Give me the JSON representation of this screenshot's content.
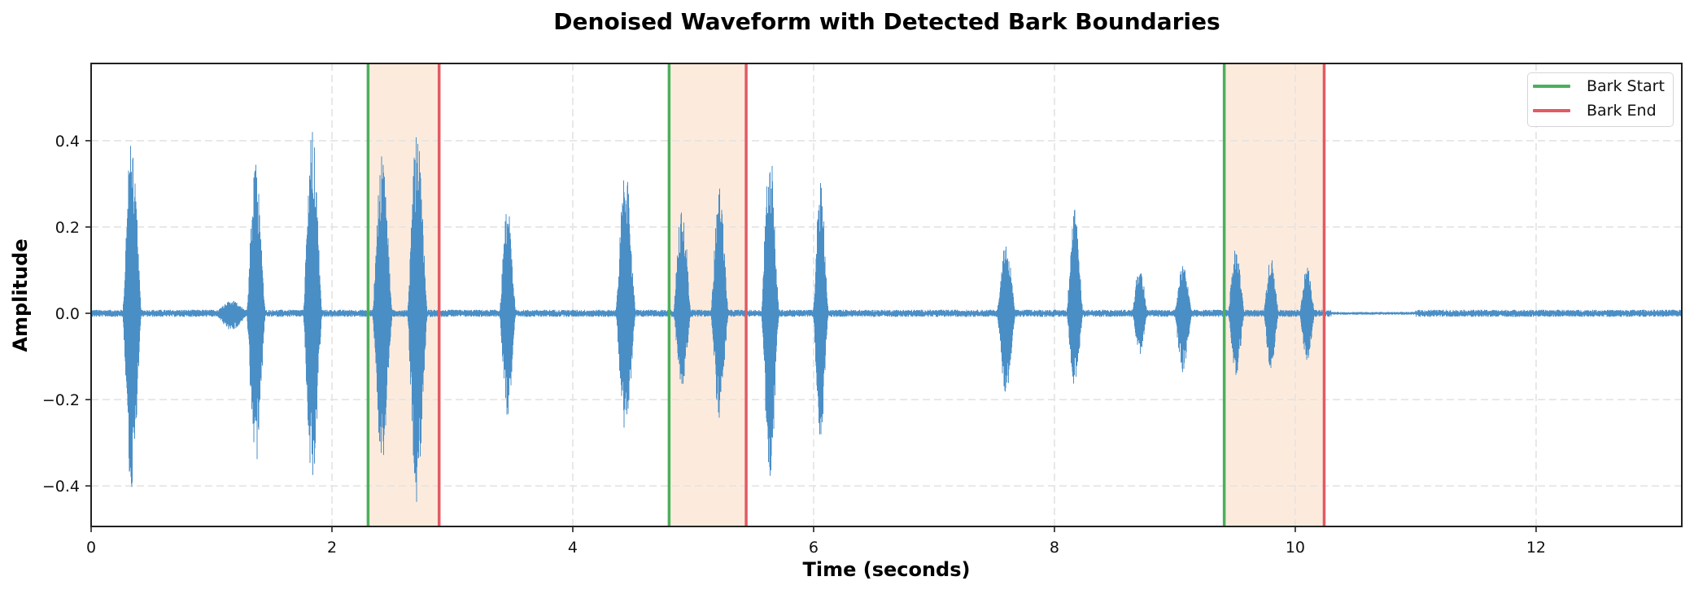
{
  "chart_data": {
    "type": "line",
    "title": "Denoised Waveform with Detected Bark Boundaries",
    "xlabel": "Time (seconds)",
    "ylabel": "Amplitude",
    "xlim": [
      0,
      13.21
    ],
    "ylim": [
      -0.494,
      0.579
    ],
    "xticks": [
      0,
      2,
      4,
      6,
      8,
      10,
      12
    ],
    "xtick_labels": [
      "0",
      "2",
      "4",
      "6",
      "8",
      "10",
      "12"
    ],
    "yticks": [
      -0.4,
      -0.2,
      0.0,
      0.2,
      0.4
    ],
    "ytick_labels": [
      "−0.4",
      "−0.2",
      "0.0",
      "0.2",
      "0.4"
    ],
    "grid": true,
    "legend_position": "upper right",
    "legend": [
      {
        "label": "Bark Start",
        "color": "#4caf5c"
      },
      {
        "label": "Bark End",
        "color": "#e15a64"
      }
    ],
    "series": [
      {
        "name": "Denoised waveform",
        "color": "#4a8ec6",
        "description": "audio waveform with bursts (barks); each burst listed by center time and peak amplitudes",
        "bursts": [
          {
            "t": 0.34,
            "pos": 0.42,
            "neg": -0.42,
            "width": 0.16
          },
          {
            "t": 1.17,
            "pos": 0.03,
            "neg": -0.04,
            "width": 0.3
          },
          {
            "t": 1.37,
            "pos": 0.35,
            "neg": -0.36,
            "width": 0.16
          },
          {
            "t": 1.84,
            "pos": 0.43,
            "neg": -0.41,
            "width": 0.16
          },
          {
            "t": 2.42,
            "pos": 0.37,
            "neg": -0.35,
            "width": 0.17
          },
          {
            "t": 2.71,
            "pos": 0.44,
            "neg": -0.45,
            "width": 0.17
          },
          {
            "t": 3.46,
            "pos": 0.25,
            "neg": -0.24,
            "width": 0.14
          },
          {
            "t": 4.44,
            "pos": 0.34,
            "neg": -0.28,
            "width": 0.17
          },
          {
            "t": 4.91,
            "pos": 0.26,
            "neg": -0.18,
            "width": 0.15
          },
          {
            "t": 5.22,
            "pos": 0.29,
            "neg": -0.25,
            "width": 0.15
          },
          {
            "t": 5.64,
            "pos": 0.41,
            "neg": -0.39,
            "width": 0.15
          },
          {
            "t": 6.06,
            "pos": 0.32,
            "neg": -0.29,
            "width": 0.13
          },
          {
            "t": 7.6,
            "pos": 0.17,
            "neg": -0.19,
            "width": 0.16
          },
          {
            "t": 8.17,
            "pos": 0.25,
            "neg": -0.17,
            "width": 0.14
          },
          {
            "t": 8.71,
            "pos": 0.12,
            "neg": -0.1,
            "width": 0.13
          },
          {
            "t": 9.07,
            "pos": 0.12,
            "neg": -0.14,
            "width": 0.15
          },
          {
            "t": 9.51,
            "pos": 0.16,
            "neg": -0.15,
            "width": 0.14
          },
          {
            "t": 9.8,
            "pos": 0.13,
            "neg": -0.13,
            "width": 0.13
          },
          {
            "t": 10.1,
            "pos": 0.11,
            "neg": -0.12,
            "width": 0.13
          }
        ],
        "noise_floor": 0.006,
        "duration": 13.2
      },
      {
        "name": "Bark Start",
        "type": "vline",
        "color": "#4caf5c",
        "x": [
          2.3,
          4.8,
          9.41
        ]
      },
      {
        "name": "Bark End",
        "type": "vline",
        "color": "#e15a64",
        "x": [
          2.89,
          5.44,
          10.24
        ]
      }
    ],
    "shaded_regions": {
      "color": "#fcebdc",
      "spans": [
        [
          2.3,
          2.89
        ],
        [
          4.8,
          5.44
        ],
        [
          9.41,
          10.24
        ]
      ]
    }
  }
}
